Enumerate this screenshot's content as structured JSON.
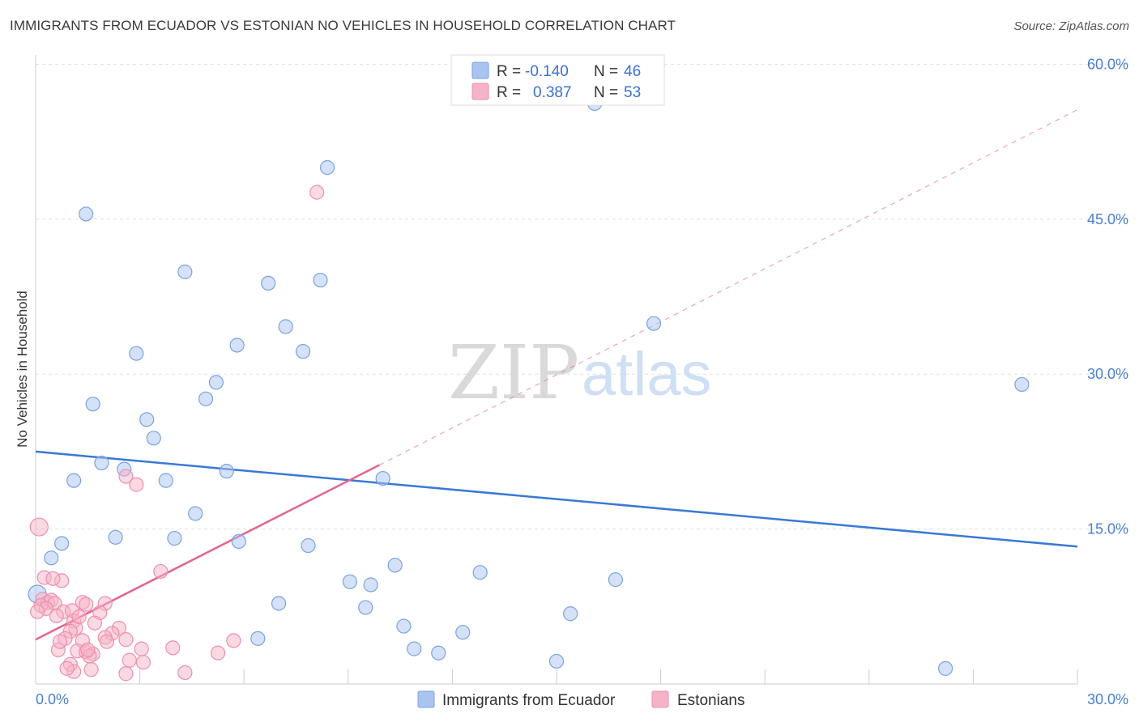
{
  "title": "IMMIGRANTS FROM ECUADOR VS ESTONIAN NO VEHICLES IN HOUSEHOLD CORRELATION CHART",
  "source": "Source: ZipAtlas.com",
  "watermark": {
    "zip": "ZIP",
    "atlas": "atlas"
  },
  "legend": {
    "rows": [
      {
        "r_label": "R =",
        "r_value": "-0.140",
        "n_label": "N =",
        "n_value": "46",
        "color": "#a9c4ef"
      },
      {
        "r_label": "R =",
        "r_value": "0.387",
        "n_label": "N =",
        "n_value": "53",
        "color": "#f5b3c8"
      }
    ]
  },
  "bottom_legend": [
    "Immigrants from Ecuador",
    "Estonians"
  ],
  "chart_data": {
    "type": "scatter",
    "title": "IMMIGRANTS FROM ECUADOR VS ESTONIAN NO VEHICLES IN HOUSEHOLD CORRELATION CHART",
    "xlabel": "",
    "ylabel": "No Vehicles in Household",
    "xlim": [
      0,
      30
    ],
    "ylim": [
      0,
      60
    ],
    "x_tick_labels": [
      "0.0%",
      "30.0%"
    ],
    "y_tick_values": [
      15,
      30,
      45,
      60
    ],
    "y_tick_labels": [
      "15.0%",
      "30.0%",
      "45.0%",
      "60.0%"
    ],
    "grid": true,
    "legend_position": "top-center",
    "series": [
      {
        "name": "Immigrants from Ecuador",
        "color": "#a9c4ef",
        "stroke": "#7aa3e0",
        "trend": {
          "x": [
            0,
            30
          ],
          "y": [
            22.5,
            13.3
          ],
          "color": "#3a78d6",
          "dashed_extension": false
        },
        "points": [
          [
            1.45,
            45.5
          ],
          [
            16.1,
            56.2
          ],
          [
            8.4,
            50.0
          ],
          [
            4.3,
            39.9
          ],
          [
            6.7,
            38.8
          ],
          [
            8.2,
            39.1
          ],
          [
            7.2,
            34.6
          ],
          [
            7.7,
            32.2
          ],
          [
            5.8,
            32.8
          ],
          [
            2.9,
            32.0
          ],
          [
            17.8,
            34.9
          ],
          [
            28.4,
            29.0
          ],
          [
            5.2,
            29.2
          ],
          [
            4.9,
            27.6
          ],
          [
            1.65,
            27.1
          ],
          [
            3.2,
            25.6
          ],
          [
            3.4,
            23.8
          ],
          [
            1.9,
            21.4
          ],
          [
            2.55,
            20.8
          ],
          [
            5.5,
            20.6
          ],
          [
            1.1,
            19.7
          ],
          [
            3.75,
            19.7
          ],
          [
            10.0,
            19.9
          ],
          [
            4.6,
            16.5
          ],
          [
            2.3,
            14.2
          ],
          [
            4.0,
            14.1
          ],
          [
            5.85,
            13.8
          ],
          [
            0.75,
            13.6
          ],
          [
            7.85,
            13.4
          ],
          [
            0.45,
            12.2
          ],
          [
            10.35,
            11.5
          ],
          [
            12.8,
            10.8
          ],
          [
            9.05,
            9.9
          ],
          [
            9.65,
            9.6
          ],
          [
            16.7,
            10.1
          ],
          [
            0.05,
            8.7
          ],
          [
            7.0,
            7.8
          ],
          [
            9.5,
            7.4
          ],
          [
            15.4,
            6.8
          ],
          [
            10.6,
            5.6
          ],
          [
            12.3,
            5.0
          ],
          [
            6.4,
            4.4
          ],
          [
            10.9,
            3.4
          ],
          [
            11.6,
            3.0
          ],
          [
            15.0,
            2.2
          ],
          [
            26.2,
            1.5
          ]
        ]
      },
      {
        "name": "Estonians",
        "color": "#f5b3c8",
        "stroke": "#ee8fae",
        "trend": {
          "x": [
            0,
            9.9
          ],
          "y": [
            4.3,
            21.2
          ],
          "color": "#e26590",
          "dashed_extension": true,
          "dashed_to": [
            30,
            55.6
          ]
        },
        "points": [
          [
            0.1,
            15.2
          ],
          [
            8.1,
            47.6
          ],
          [
            2.6,
            20.1
          ],
          [
            2.9,
            19.3
          ],
          [
            3.6,
            10.9
          ],
          [
            0.25,
            10.3
          ],
          [
            0.75,
            10.0
          ],
          [
            0.5,
            10.2
          ],
          [
            0.2,
            8.2
          ],
          [
            0.35,
            7.9
          ],
          [
            0.45,
            8.1
          ],
          [
            0.15,
            7.6
          ],
          [
            0.55,
            7.8
          ],
          [
            1.35,
            7.9
          ],
          [
            1.45,
            7.7
          ],
          [
            2.0,
            7.8
          ],
          [
            0.8,
            7.0
          ],
          [
            1.05,
            7.1
          ],
          [
            0.6,
            6.6
          ],
          [
            1.85,
            6.9
          ],
          [
            1.1,
            6.1
          ],
          [
            1.7,
            5.9
          ],
          [
            2.4,
            5.4
          ],
          [
            1.15,
            5.4
          ],
          [
            1.0,
            5.1
          ],
          [
            2.2,
            4.9
          ],
          [
            2.0,
            4.5
          ],
          [
            0.85,
            4.4
          ],
          [
            1.35,
            4.2
          ],
          [
            2.6,
            4.3
          ],
          [
            5.7,
            4.2
          ],
          [
            0.65,
            3.3
          ],
          [
            1.2,
            3.2
          ],
          [
            1.45,
            3.1
          ],
          [
            1.65,
            2.9
          ],
          [
            3.05,
            3.4
          ],
          [
            3.95,
            3.5
          ],
          [
            5.25,
            3.0
          ],
          [
            1.55,
            2.7
          ],
          [
            2.7,
            2.3
          ],
          [
            1.0,
            1.9
          ],
          [
            1.1,
            1.2
          ],
          [
            1.6,
            1.4
          ],
          [
            2.6,
            1.0
          ],
          [
            4.3,
            1.1
          ],
          [
            0.3,
            7.3
          ],
          [
            1.25,
            6.5
          ],
          [
            0.7,
            4.1
          ],
          [
            2.05,
            4.1
          ],
          [
            1.5,
            3.3
          ],
          [
            0.9,
            1.5
          ],
          [
            3.1,
            2.1
          ],
          [
            0.05,
            7.0
          ]
        ]
      }
    ]
  }
}
